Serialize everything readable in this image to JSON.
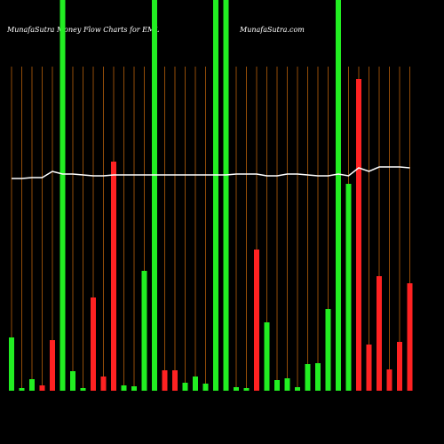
{
  "chart_data": {
    "type": "bar",
    "title": "MunafaSutra Money Flow Charts for EML",
    "subtitle": "MunafaSutra.com",
    "ylim": [
      0,
      440
    ],
    "values": [
      60,
      3,
      13,
      6,
      57,
      440,
      22,
      3,
      105,
      16,
      258,
      6,
      5,
      135,
      440,
      23,
      23,
      9,
      16,
      8,
      440,
      440,
      4,
      3,
      159,
      77,
      12,
      14,
      4,
      30,
      31,
      92,
      440,
      233,
      351,
      52,
      129,
      24,
      55,
      121
    ],
    "colors": [
      "#22ee22",
      "#22ee22",
      "#22ee22",
      "#ff2222",
      "#ff2222",
      "#22ee22",
      "#22ee22",
      "#22ee22",
      "#ff2222",
      "#ff2222",
      "#ff2222",
      "#22ee22",
      "#22ee22",
      "#22ee22",
      "#22ee22",
      "#ff2222",
      "#ff2222",
      "#22ee22",
      "#22ee22",
      "#22ee22",
      "#22ee22",
      "#22ee22",
      "#22ee22",
      "#22ee22",
      "#ff2222",
      "#22ee22",
      "#22ee22",
      "#22ee22",
      "#22ee22",
      "#22ee22",
      "#22ee22",
      "#22ee22",
      "#22ee22",
      "#22ee22",
      "#ff2222",
      "#ff2222",
      "#ff2222",
      "#ff2222",
      "#ff2222",
      "#ff2222"
    ],
    "line": {
      "color": "#ffffff",
      "values": [
        239,
        239,
        240,
        240,
        247,
        244,
        244,
        243,
        242,
        242,
        243,
        243,
        243,
        243,
        243,
        243,
        243,
        243,
        243,
        243,
        243,
        243,
        244,
        244,
        244,
        242,
        242,
        244,
        244,
        243,
        242,
        242,
        244,
        242,
        251,
        247,
        252,
        252,
        252,
        251
      ]
    }
  }
}
